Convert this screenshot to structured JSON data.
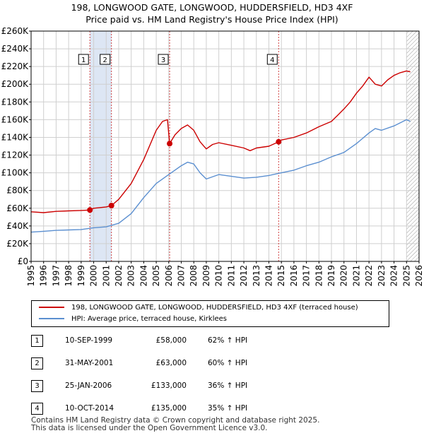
{
  "title_line1": "198, LONGWOOD GATE, LONGWOOD, HUDDERSFIELD, HD3 4XF",
  "title_line2": "Price paid vs. HM Land Registry's House Price Index (HPI)",
  "colors": {
    "price_line": "#cc0000",
    "hpi_line": "#5b8fd0",
    "shade": "#dde6f4",
    "vline": "#d04040",
    "grid": "#cfcfcf"
  },
  "legend": {
    "price_label": "198, LONGWOOD GATE, LONGWOOD, HUDDERSFIELD, HD3 4XF (terraced house)",
    "hpi_label": "HPI: Average price, terraced house, Kirklees"
  },
  "sales": [
    {
      "num": "1",
      "date": "10-SEP-1999",
      "price": "£58,000",
      "hpi": "62% ↑ HPI"
    },
    {
      "num": "2",
      "date": "31-MAY-2001",
      "price": "£63,000",
      "hpi": "60% ↑ HPI"
    },
    {
      "num": "3",
      "date": "25-JAN-2006",
      "price": "£133,000",
      "hpi": "36% ↑ HPI"
    },
    {
      "num": "4",
      "date": "10-OCT-2014",
      "price": "£135,000",
      "hpi": "35% ↑ HPI"
    }
  ],
  "footer_line1": "Contains HM Land Registry data © Crown copyright and database right 2025.",
  "footer_line2": "This data is licensed under the Open Government Licence v3.0.",
  "chart_data": {
    "type": "line",
    "title": "198, LONGWOOD GATE, LONGWOOD, HUDDERSFIELD, HD3 4XF — Price paid vs. HM Land Registry's House Price Index (HPI)",
    "xlabel": "",
    "ylabel": "",
    "xlim": [
      1995,
      2026
    ],
    "ylim": [
      0,
      260000
    ],
    "grid": true,
    "x_ticks": [
      1995,
      1996,
      1997,
      1998,
      1999,
      2000,
      2001,
      2002,
      2003,
      2004,
      2005,
      2006,
      2007,
      2008,
      2009,
      2010,
      2011,
      2012,
      2013,
      2014,
      2015,
      2016,
      2017,
      2018,
      2019,
      2020,
      2021,
      2022,
      2023,
      2024,
      2025,
      2026
    ],
    "y_ticks": [
      0,
      20000,
      40000,
      60000,
      80000,
      100000,
      120000,
      140000,
      160000,
      180000,
      200000,
      220000,
      240000,
      260000
    ],
    "y_tick_labels": [
      "£0",
      "£20K",
      "£40K",
      "£60K",
      "£80K",
      "£100K",
      "£120K",
      "£140K",
      "£160K",
      "£180K",
      "£200K",
      "£220K",
      "£240K",
      "£260K"
    ],
    "shaded_periods": [
      [
        1999.7,
        2001.42
      ]
    ],
    "hatched_from": 2025.0,
    "sale_markers": [
      {
        "label": "1",
        "x": 1999.7,
        "y": 58000
      },
      {
        "label": "2",
        "x": 2001.42,
        "y": 63000
      },
      {
        "label": "3",
        "x": 2006.07,
        "y": 133000
      },
      {
        "label": "4",
        "x": 2014.78,
        "y": 135000
      }
    ],
    "series": [
      {
        "name": "198, LONGWOOD GATE, LONGWOOD, HUDDERSFIELD, HD3 4XF (terraced house)",
        "x": [
          1995,
          1996,
          1997,
          1998,
          1999,
          1999.7,
          2000,
          2001,
          2001.42,
          2002,
          2003,
          2004,
          2005,
          2005.5,
          2005.9,
          2006.07,
          2006.5,
          2007,
          2007.5,
          2008,
          2008.5,
          2009,
          2009.5,
          2010,
          2011,
          2012,
          2012.5,
          2013,
          2014,
          2014.78,
          2015,
          2016,
          2017,
          2018,
          2019,
          2019.5,
          2020,
          2020.5,
          2021,
          2021.5,
          2022,
          2022.5,
          2023,
          2023.5,
          2024,
          2024.5,
          2025,
          2025.3
        ],
        "values": [
          56000,
          55000,
          56500,
          57000,
          57500,
          58000,
          60000,
          61500,
          63000,
          70000,
          88000,
          115000,
          148000,
          158000,
          160000,
          133000,
          143000,
          150000,
          154000,
          148000,
          135000,
          127000,
          132000,
          134000,
          131000,
          128000,
          125000,
          128000,
          130000,
          135000,
          137000,
          140000,
          145000,
          152000,
          158000,
          165000,
          172000,
          180000,
          190000,
          198000,
          208000,
          200000,
          198000,
          205000,
          210000,
          213000,
          215000,
          214000
        ]
      },
      {
        "name": "HPI: Average price, terraced house, Kirklees",
        "x": [
          1995,
          1996,
          1997,
          1998,
          1999,
          2000,
          2001,
          2002,
          2003,
          2004,
          2005,
          2006,
          2007,
          2007.5,
          2008,
          2008.5,
          2009,
          2010,
          2011,
          2012,
          2013,
          2014,
          2015,
          2016,
          2017,
          2018,
          2019,
          2020,
          2021,
          2022,
          2022.5,
          2023,
          2024,
          2025,
          2025.3
        ],
        "values": [
          33000,
          34000,
          35000,
          35500,
          36000,
          38000,
          39000,
          43000,
          54000,
          72000,
          88000,
          98000,
          108000,
          112000,
          110000,
          100000,
          93000,
          98000,
          96000,
          94000,
          95000,
          97000,
          100000,
          103000,
          108000,
          112000,
          118000,
          123000,
          133000,
          145000,
          150000,
          148000,
          153000,
          160000,
          158000
        ]
      }
    ]
  }
}
